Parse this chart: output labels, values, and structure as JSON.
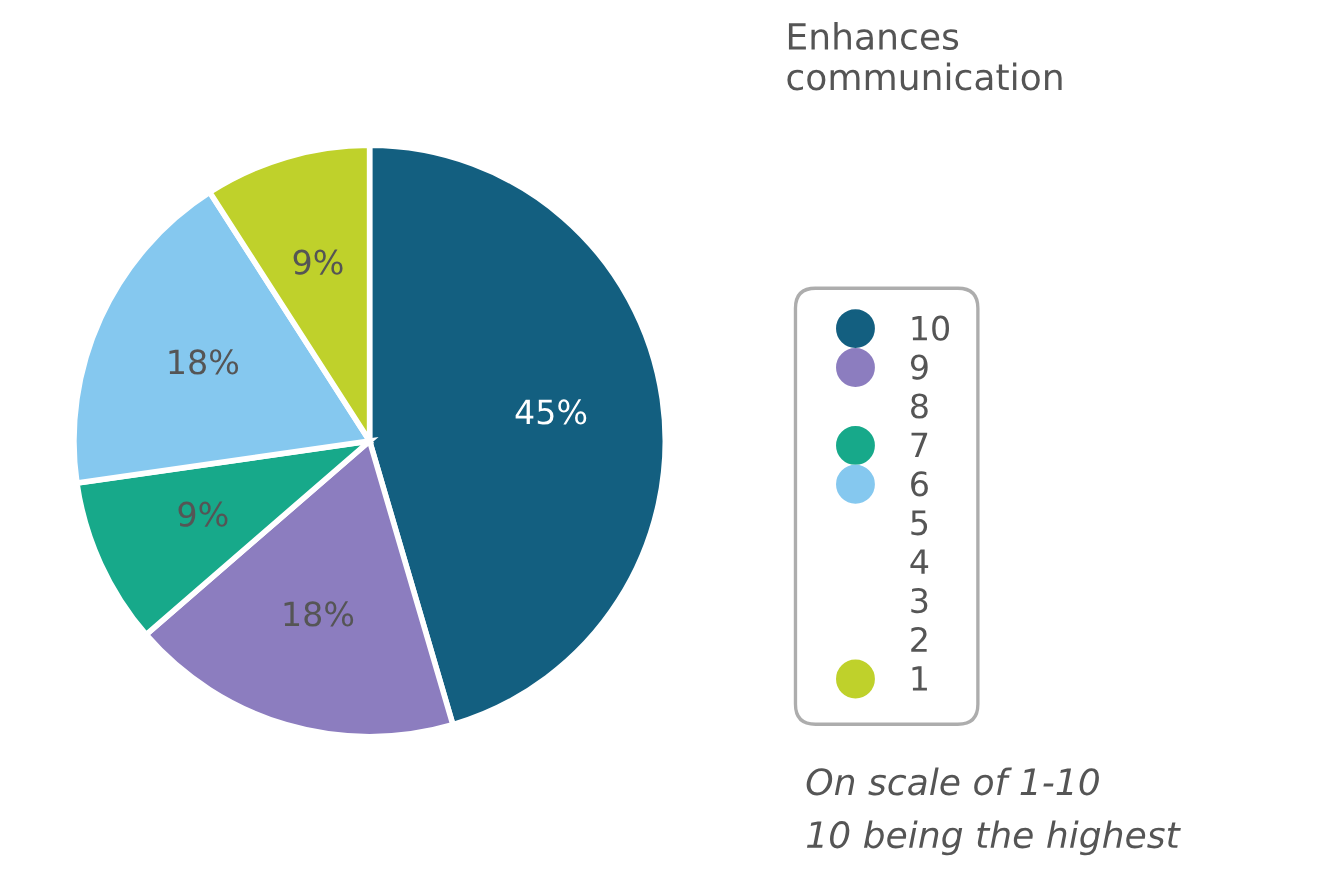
{
  "chart_data": {
    "type": "pie",
    "legend_title": "Enhances communication",
    "categories": [
      "10",
      "9",
      "8",
      "7",
      "6",
      "5",
      "4",
      "3",
      "2",
      "1"
    ],
    "values": [
      45,
      18,
      0,
      9,
      18,
      0,
      0,
      0,
      0,
      9
    ],
    "colors": [
      "#135f80",
      "#8c7dbf",
      null,
      "#17a98a",
      "#85c8ef",
      null,
      null,
      null,
      null,
      "#bfd12b"
    ],
    "value_labels": [
      "45%",
      "18%",
      null,
      "9%",
      "18%",
      null,
      null,
      null,
      null,
      "9%"
    ],
    "legend": "right",
    "annotations": [
      "On scale of 1-10",
      "10 being the highest"
    ]
  }
}
